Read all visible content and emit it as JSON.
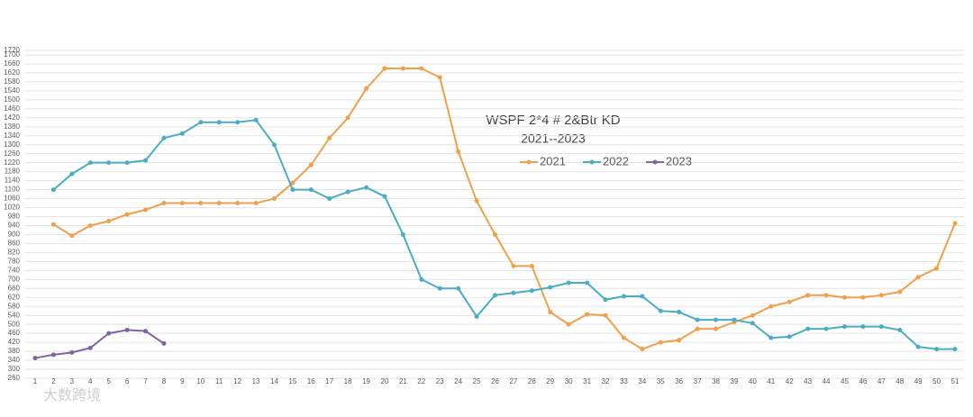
{
  "chart_data": {
    "type": "line",
    "title": "WSPF 2*4 # 2&Btr KD",
    "subtitle": "2021--2023",
    "watermark": "大数跨境",
    "categories": [
      "1",
      "2",
      "3",
      "4",
      "5",
      "6",
      "7",
      "8",
      "9",
      "10",
      "11",
      "12",
      "13",
      "14",
      "15",
      "16",
      "17",
      "18",
      "19",
      "20",
      "21",
      "22",
      "23",
      "24",
      "25",
      "26",
      "27",
      "28",
      "29",
      "30",
      "31",
      "32",
      "33",
      "34",
      "35",
      "36",
      "37",
      "38",
      "39",
      "40",
      "41",
      "42",
      "43",
      "44",
      "45",
      "46",
      "47",
      "48",
      "49",
      "50",
      "51"
    ],
    "series": [
      {
        "name": "2021",
        "color": "#f0a04b",
        "values": [
          null,
          945,
          895,
          940,
          960,
          990,
          1010,
          1040,
          1040,
          1040,
          1040,
          1040,
          1040,
          1060,
          1130,
          1210,
          1330,
          1420,
          1550,
          1640,
          1640,
          1640,
          1600,
          1270,
          1050,
          900,
          760,
          760,
          555,
          500,
          545,
          540,
          440,
          390,
          420,
          430,
          480,
          480,
          510,
          540,
          580,
          600,
          630,
          630,
          620,
          620,
          630,
          645,
          710,
          750,
          950
        ]
      },
      {
        "name": "2022",
        "color": "#4bacc6",
        "values": [
          null,
          1100,
          1170,
          1220,
          1220,
          1220,
          1230,
          1330,
          1350,
          1400,
          1400,
          1400,
          1410,
          1300,
          1100,
          1100,
          1060,
          1090,
          1110,
          1070,
          900,
          700,
          660,
          660,
          535,
          630,
          640,
          650,
          665,
          685,
          685,
          610,
          625,
          625,
          560,
          555,
          520,
          520,
          520,
          505,
          440,
          445,
          480,
          480,
          490,
          490,
          490,
          475,
          400,
          390,
          390
        ]
      },
      {
        "name": "2023",
        "color": "#8064a2",
        "values": [
          350,
          365,
          375,
          395,
          460,
          475,
          470,
          415,
          null,
          null,
          null,
          null,
          null,
          null,
          null,
          null,
          null,
          null,
          null,
          null,
          null,
          null,
          null,
          null,
          null,
          null,
          null,
          null,
          null,
          null,
          null,
          null,
          null,
          null,
          null,
          null,
          null,
          null,
          null,
          null,
          null,
          null,
          null,
          null,
          null,
          null,
          null,
          null,
          null,
          null,
          null
        ]
      }
    ],
    "ylim": [
      260,
      1720
    ],
    "yticks": [
      260,
      300,
      340,
      380,
      420,
      460,
      500,
      540,
      580,
      620,
      660,
      700,
      740,
      780,
      820,
      860,
      900,
      940,
      980,
      1020,
      1060,
      1100,
      1140,
      1180,
      1220,
      1260,
      1300,
      1340,
      1380,
      1420,
      1460,
      1500,
      1540,
      1580,
      1620,
      1660,
      1700,
      1720
    ],
    "grid": true
  }
}
